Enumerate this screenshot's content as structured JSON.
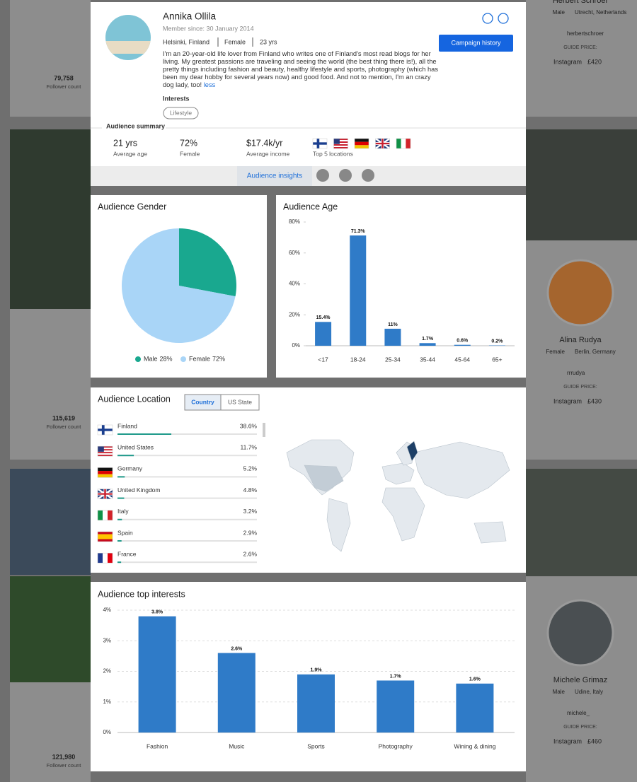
{
  "background_cards": [
    {
      "name": "Herbert Schroer",
      "gender": "Male",
      "location": "Utrecht, Netherlands",
      "handle": "herbertschroer",
      "guide_price_label": "GUIDE PRICE:",
      "platform": "Instagram",
      "price": "£420"
    },
    {
      "name": "Alina Rudya",
      "gender": "Female",
      "location": "Berlin, Germany",
      "handle": "rrrudya",
      "guide_price_label": "GUIDE PRICE:",
      "platform": "Instagram",
      "price": "£430"
    },
    {
      "name": "Michele Grimaz",
      "gender": "Male",
      "location": "Udine, Italy",
      "handle": "michele_",
      "guide_price_label": "GUIDE PRICE:",
      "platform": "Instagram",
      "price": "£460"
    }
  ],
  "follower_stats": [
    {
      "value": "79,758",
      "label": "Follower count"
    },
    {
      "value": "115,619",
      "label": "Follower count"
    },
    {
      "value": "121,980",
      "label": "Follower count"
    }
  ],
  "profile": {
    "name": "Annika Ollila",
    "member_since": "Member since: 30 January 2014",
    "location": "Helsinki, Finland",
    "gender": "Female",
    "age": "23 yrs",
    "bio": "I'm an 20-year-old life lover from Finland who writes one of Finland's most read blogs for her living. My greatest passions are traveling and seeing the world (the best thing there is!), all the pretty things including fashion and beauty, healthy lifestyle and sports, photography (which has been my dear hobby for several years now) and good food. And not to mention, I'm an crazy dog lady, too!",
    "less": "less",
    "interests_label": "Interests",
    "interests": [
      "Lifestyle"
    ],
    "campaign_button": "Campaign history"
  },
  "audience_summary": {
    "title": "Audience summary",
    "stats": [
      {
        "value": "21 yrs",
        "label": "Average age"
      },
      {
        "value": "72%",
        "label": "Female"
      },
      {
        "value": "$17.4k/yr",
        "label": "Average income"
      }
    ],
    "top_locations_label": "Top 5 locations"
  },
  "tabs": {
    "insights": "Audience insights"
  },
  "chart_data": [
    {
      "type": "pie",
      "title": "Audience Gender",
      "categories": [
        "Male",
        "Female"
      ],
      "values": [
        28,
        72
      ],
      "value_labels": [
        "28%",
        "72%"
      ],
      "colors": [
        "#19a88f",
        "#a9d5f7"
      ]
    },
    {
      "type": "bar",
      "title": "Audience Age",
      "categories": [
        "<17",
        "18-24",
        "25-34",
        "35-44",
        "45-64",
        "65+"
      ],
      "values": [
        15.4,
        71.3,
        11,
        1.7,
        0.6,
        0.2
      ],
      "value_labels": [
        "15.4%",
        "71.3%",
        "11%",
        "1.7%",
        "0.6%",
        "0.2%"
      ],
      "color": "#2f7bc8",
      "ylim": [
        0,
        80
      ],
      "yticks": [
        {
          "value": 0,
          "label": "0%"
        },
        {
          "value": 20,
          "label": "20%"
        },
        {
          "value": 40,
          "label": "40%"
        },
        {
          "value": 60,
          "label": "60%"
        },
        {
          "value": 80,
          "label": "80%"
        }
      ],
      "grid": false
    },
    {
      "type": "bar",
      "title": "Audience top interests",
      "categories": [
        "Fashion",
        "Music",
        "Sports",
        "Photography",
        "Wining & dining"
      ],
      "values": [
        3.8,
        2.6,
        1.9,
        1.7,
        1.6
      ],
      "value_labels": [
        "3.8%",
        "2.6%",
        "1.9%",
        "1.7%",
        "1.6%"
      ],
      "color": "#2f7bc8",
      "ylim": [
        0,
        4
      ],
      "yticks": [
        {
          "value": 0,
          "label": "0%"
        },
        {
          "value": 1,
          "label": "1%"
        },
        {
          "value": 2,
          "label": "2%"
        },
        {
          "value": 3,
          "label": "3%"
        },
        {
          "value": 4,
          "label": "4%"
        }
      ],
      "grid": true
    }
  ],
  "location": {
    "title": "Audience Location",
    "toggle": [
      "Country",
      "US State"
    ],
    "rows": [
      {
        "country": "Finland",
        "share": 38.6,
        "share_label": "38.6%"
      },
      {
        "country": "United States",
        "share": 11.7,
        "share_label": "11.7%"
      },
      {
        "country": "Germany",
        "share": 5.2,
        "share_label": "5.2%"
      },
      {
        "country": "United Kingdom",
        "share": 4.8,
        "share_label": "4.8%"
      },
      {
        "country": "Italy",
        "share": 3.2,
        "share_label": "3.2%"
      },
      {
        "country": "Spain",
        "share": 2.9,
        "share_label": "2.9%"
      },
      {
        "country": "France",
        "share": 2.6,
        "share_label": "2.6%"
      }
    ]
  }
}
